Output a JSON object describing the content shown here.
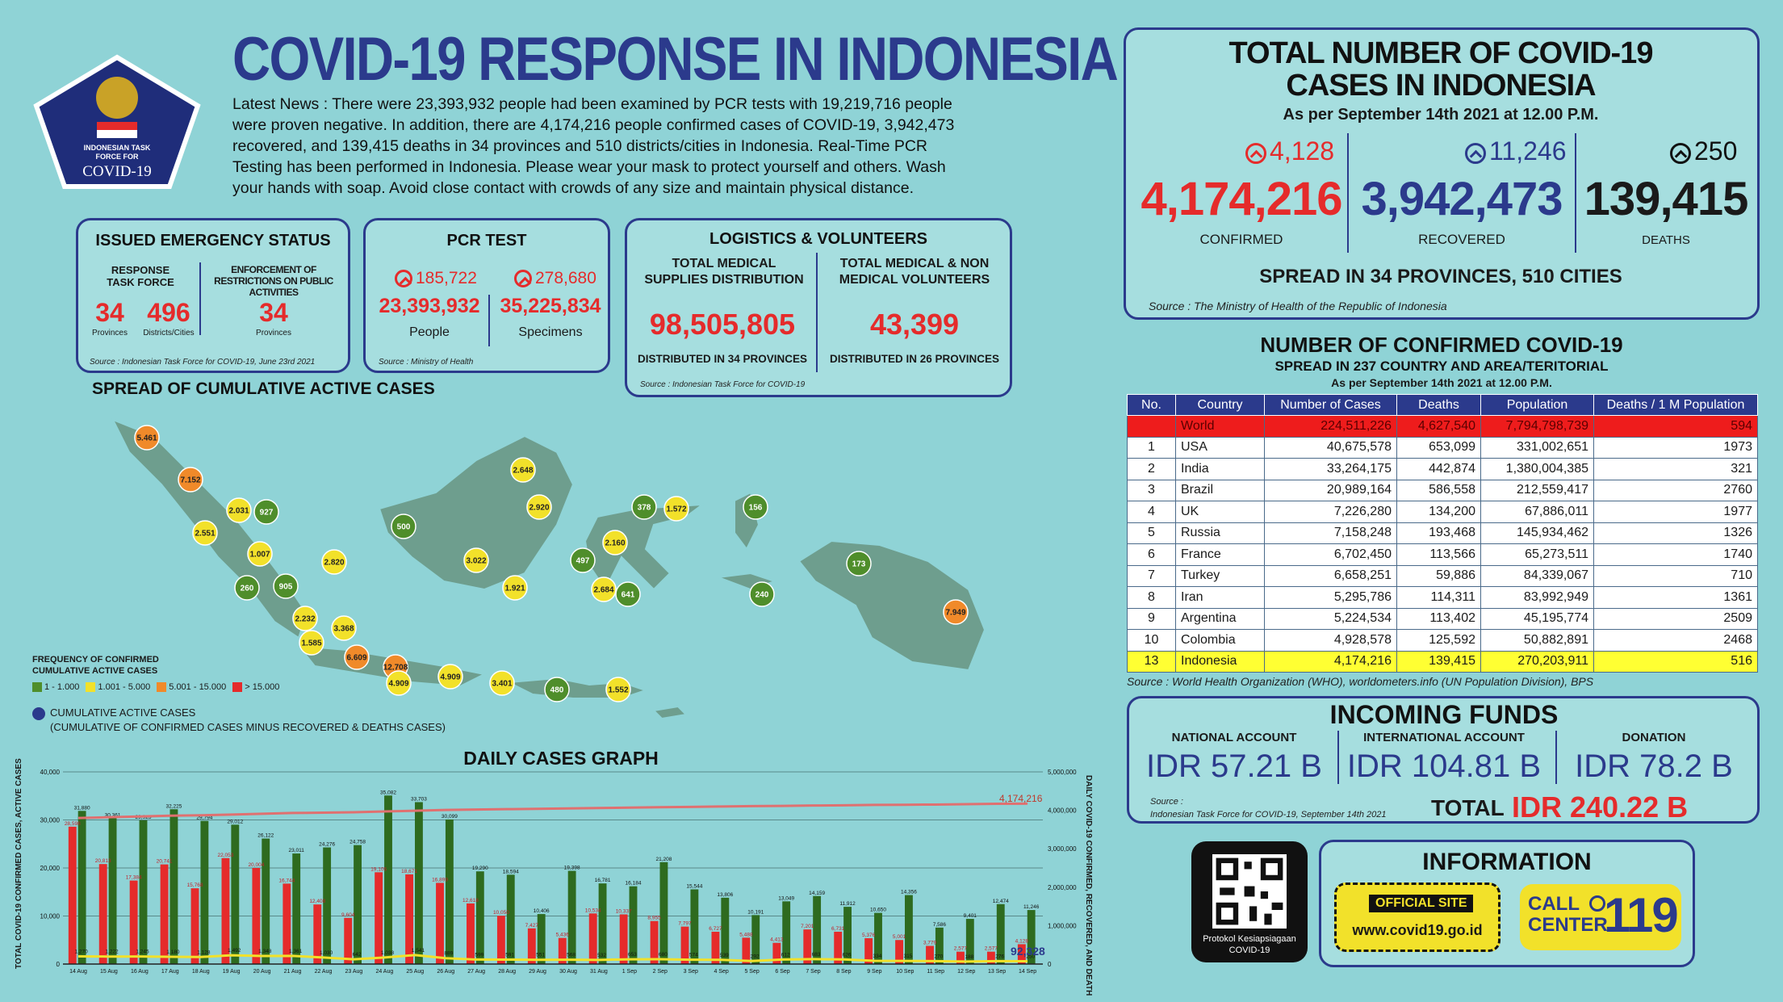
{
  "header": {
    "title": "COVID-19 RESPONSE IN INDONESIA",
    "logo_text": [
      "INDONESIAN TASK",
      "FORCE FOR",
      "COVID-19"
    ],
    "news_lines": [
      "Latest News : There were 23,393,932 people had been examined by PCR tests with 19,219,716 people",
      "were proven negative. In addition, there are 4,174,216 people confirmed cases of COVID-19, 3,942,473",
      "recovered, and 139,415 deaths in 34 provinces and 510 districts/cities in Indonesia. Real-Time PCR",
      "Testing has been performed in Indonesia. Please wear your mask to protect yourself and others. Wash",
      "your hands with soap. Avoid close contact with crowds of any size and maintain physical distance."
    ]
  },
  "emergency": {
    "title": "ISSUED EMERGENCY STATUS",
    "response_label": "RESPONSE TASK FORCE",
    "enforce_label": "ENFORCEMENT OF RESTRICTIONS ON PUBLIC ACTIVITIES",
    "provinces_value": "34",
    "provinces_label": "Provinces",
    "districts_value": "496",
    "districts_label": "Districts/Cities",
    "enforce_value": "34",
    "enforce_unit": "Provinces",
    "source": "Source : Indonesian Task Force for COVID-19, June 23rd 2021"
  },
  "pcr": {
    "title": "PCR TEST",
    "people_inc": "185,722",
    "specimens_inc": "278,680",
    "people_value": "23,393,932",
    "specimens_value": "35,225,834",
    "people_label": "People",
    "specimens_label": "Specimens",
    "source": "Source : Ministry of Health"
  },
  "logistics": {
    "title": "LOGISTICS & VOLUNTEERS",
    "supplies_label": "TOTAL MEDICAL SUPPLIES DISTRIBUTION",
    "supplies_value": "98,505,805",
    "supplies_note": "DISTRIBUTED IN 34 PROVINCES",
    "volunteers_label": "TOTAL MEDICAL & NON MEDICAL VOLUNTEERS",
    "volunteers_value": "43,399",
    "volunteers_note": "DISTRIBUTED IN 26 PROVINCES",
    "source": "Source : Indonesian Task Force for COVID-19"
  },
  "totals": {
    "title_line1": "TOTAL NUMBER OF COVID-19",
    "title_line2": "CASES IN INDONESIA",
    "as_of": "As per September 14th 2021 at 12.00 P.M.",
    "confirmed_inc": "4,128",
    "recovered_inc": "11,246",
    "deaths_inc": "250",
    "confirmed": "4,174,216",
    "recovered": "3,942,473",
    "deaths": "139,415",
    "confirmed_label": "CONFIRMED",
    "recovered_label": "RECOVERED",
    "deaths_label": "DEATHS",
    "spread": "SPREAD IN 34 PROVINCES, 510 CITIES",
    "source": "Source : The Ministry of Health of the Republic of Indonesia"
  },
  "world": {
    "title": "NUMBER OF CONFIRMED COVID-19",
    "subtitle": "SPREAD IN 237 COUNTRY AND AREA/TERITORIAL",
    "as_of": "As per September 14th 2021 at 12.00 P.M.",
    "headers": [
      "No.",
      "Country",
      "Number of Cases",
      "Deaths",
      "Population",
      "Deaths / 1 M Population"
    ],
    "rows": [
      [
        "",
        "World",
        "224,511,226",
        "4,627,540",
        "7,794,798,739",
        "594"
      ],
      [
        "1",
        "USA",
        "40,675,578",
        "653,099",
        "331,002,651",
        "1973"
      ],
      [
        "2",
        "India",
        "33,264,175",
        "442,874",
        "1,380,004,385",
        "321"
      ],
      [
        "3",
        "Brazil",
        "20,989,164",
        "586,558",
        "212,559,417",
        "2760"
      ],
      [
        "4",
        "UK",
        "7,226,280",
        "134,200",
        "67,886,011",
        "1977"
      ],
      [
        "5",
        "Russia",
        "7,158,248",
        "193,468",
        "145,934,462",
        "1326"
      ],
      [
        "6",
        "France",
        "6,702,450",
        "113,566",
        "65,273,511",
        "1740"
      ],
      [
        "7",
        "Turkey",
        "6,658,251",
        "59,886",
        "84,339,067",
        "710"
      ],
      [
        "8",
        "Iran",
        "5,295,786",
        "114,311",
        "83,992,949",
        "1361"
      ],
      [
        "9",
        "Argentina",
        "5,224,534",
        "113,402",
        "45,195,774",
        "2509"
      ],
      [
        "10",
        "Colombia",
        "4,928,578",
        "125,592",
        "50,882,891",
        "2468"
      ],
      [
        "13",
        "Indonesia",
        "4,174,216",
        "139,415",
        "270,203,911",
        "516"
      ]
    ],
    "source": "Source : World Health Organization (WHO), worldometers.info (UN Population Division), BPS"
  },
  "funds": {
    "title": "INCOMING FUNDS",
    "national_label": "NATIONAL ACCOUNT",
    "international_label": "INTERNATIONAL ACCOUNT",
    "donation_label": "DONATION",
    "national": "IDR 57.21 B",
    "international": "IDR 104.81 B",
    "donation": "IDR 78.2 B",
    "total_label": "TOTAL",
    "total": "IDR 240.22 B",
    "source_label": "Source :",
    "source": "Indonesian Task Force for COVID-19, September 14th 2021"
  },
  "info": {
    "qr_caption": "Protokol Kesiapsiagaan COVID-19",
    "title": "INFORMATION",
    "site_label": "OFFICIAL SITE",
    "site_url": "www.covid19.go.id",
    "call_label": "CALL CENTER",
    "call_number": "119"
  },
  "map": {
    "title": "SPREAD OF CUMULATIVE ACTIVE CASES",
    "legend_title": "FREQUENCY OF CONFIRMED CUMULATIVE ACTIVE CASES",
    "legend_items": [
      "1 - 1.000",
      "1.001 - 5.000",
      "5.001 - 15.000",
      "> 15.000"
    ],
    "legend_colors": [
      "#4f8e2b",
      "#f2e12a",
      "#f08a2a",
      "#e52b2b"
    ],
    "note_title": "CUMULATIVE ACTIVE CASES",
    "note_detail": "(CUMULATIVE OF CONFIRMED CASES MINUS RECOVERED & DEATHS CASES)",
    "points": [
      {
        "label": "5.461",
        "level": "o"
      },
      {
        "label": "7.152",
        "level": "o"
      },
      {
        "label": "2.031",
        "level": "y"
      },
      {
        "label": "927",
        "level": "g"
      },
      {
        "label": "2.551",
        "level": "y"
      },
      {
        "label": "1.007",
        "level": "y"
      },
      {
        "label": "260",
        "level": "g"
      },
      {
        "label": "905",
        "level": "g"
      },
      {
        "label": "2.820",
        "level": "y"
      },
      {
        "label": "2.232",
        "level": "y"
      },
      {
        "label": "3.368",
        "level": "y"
      },
      {
        "label": "1.585",
        "level": "y"
      },
      {
        "label": "6.609",
        "level": "o"
      },
      {
        "label": "12.708",
        "level": "o"
      },
      {
        "label": "4.909",
        "level": "y"
      },
      {
        "label": "4.909",
        "level": "y"
      },
      {
        "label": "3.401",
        "level": "y"
      },
      {
        "label": "480",
        "level": "g"
      },
      {
        "label": "1.552",
        "level": "y"
      },
      {
        "label": "2.648",
        "level": "y"
      },
      {
        "label": "500",
        "level": "g"
      },
      {
        "label": "2.920",
        "level": "y"
      },
      {
        "label": "3.022",
        "level": "y"
      },
      {
        "label": "1.921",
        "level": "y"
      },
      {
        "label": "378",
        "level": "g"
      },
      {
        "label": "1.572",
        "level": "y"
      },
      {
        "label": "156",
        "level": "g"
      },
      {
        "label": "2.160",
        "level": "y"
      },
      {
        "label": "497",
        "level": "g"
      },
      {
        "label": "2.684",
        "level": "y"
      },
      {
        "label": "641",
        "level": "g"
      },
      {
        "label": "240",
        "level": "g"
      },
      {
        "label": "173",
        "level": "g"
      },
      {
        "label": "7.949",
        "level": "o"
      }
    ]
  },
  "daily": {
    "title": "DAILY CASES GRAPH",
    "y_left_label": "TOTAL COVID-19 CONFIRMED CASES, ACTIVE CASES",
    "y_right_label": "DAILY COVID-19 CONFIRMED, RECOVERED, AND DEATH",
    "total_label": "4,174,216",
    "active_label": "92,328",
    "left_ticks": [
      "40,000",
      "30,000",
      "20,000",
      "10,000",
      "0"
    ],
    "right_ticks": [
      "5,000,000",
      "4,000,000",
      "3,000,000",
      "2,000,000",
      "1,000,000",
      "0"
    ]
  },
  "chart_data": {
    "type": "bar",
    "title": "DAILY CASES GRAPH",
    "categories": [
      "14 Aug",
      "15 Aug",
      "16 Aug",
      "17 Aug",
      "18 Aug",
      "19 Aug",
      "20 Aug",
      "21 Aug",
      "22 Aug",
      "23 Aug",
      "24 Aug",
      "25 Aug",
      "26 Aug",
      "27 Aug",
      "28 Aug",
      "29 Aug",
      "30 Aug",
      "31 Aug",
      "1 Sep",
      "2 Sep",
      "3 Sep",
      "4 Sep",
      "5 Sep",
      "6 Sep",
      "7 Sep",
      "8 Sep",
      "9 Sep",
      "10 Sep",
      "11 Sep",
      "12 Sep",
      "13 Sep",
      "14 Sep"
    ],
    "series": [
      {
        "name": "Daily Confirmed Cases of COVID-19",
        "color": "#e52b2b",
        "values": [
          28598,
          20813,
          17384,
          20741,
          15768,
          22053,
          20004,
          16744,
          12408,
          9604,
          19106,
          18671,
          16899,
          12618,
          10050,
          7427,
          5436,
          10534,
          10337,
          8955,
          7797,
          6727,
          5488,
          4413,
          7201,
          6731,
          5376,
          5001,
          3779,
          2577,
          2577,
          4128
        ]
      },
      {
        "name": "Total Recovered Cases of COVID-19",
        "color": "#2e6b1f",
        "values": [
          31880,
          30361,
          29925,
          32225,
          29794,
          29012,
          26122,
          23011,
          24276,
          24758,
          35082,
          33703,
          30099,
          19290,
          18594,
          10406,
          19398,
          16781,
          16184,
          21208,
          15544,
          13806,
          10191,
          13049,
          14159,
          11912,
          10650,
          14356,
          7586,
          9401,
          12474,
          11246
        ]
      },
      {
        "name": "Deaths",
        "color": "#f2e12a",
        "values": [
          1270,
          1222,
          1245,
          1180,
          1128,
          1492,
          1348,
          1361,
          1030,
          642,
          1038,
          1541,
          889,
          599,
          591,
          551,
          568,
          532,
          653,
          680,
          574,
          539,
          292,
          612,
          683,
          626,
          334,
          315,
          270,
          188,
          276,
          250
        ]
      },
      {
        "name": "Total Confirmed Cases of COVID-19",
        "color": "#e07070",
        "axis": "right",
        "values": [
          3800000,
          3820000,
          3840000,
          3860000,
          3870000,
          3890000,
          3910000,
          3930000,
          3940000,
          3950000,
          3970000,
          3990000,
          4010000,
          4020000,
          4030000,
          4040000,
          4050000,
          4060000,
          4070000,
          4080000,
          4090000,
          4100000,
          4110000,
          4115000,
          4125000,
          4130000,
          4140000,
          4145000,
          4150000,
          4160000,
          4170000,
          4174216
        ]
      }
    ],
    "ylim": [
      0,
      40000
    ],
    "y2lim": [
      0,
      5000000
    ],
    "xlabel": "",
    "ylabel": "TOTAL COVID-19 CONFIRMED CASES, ACTIVE CASES"
  }
}
